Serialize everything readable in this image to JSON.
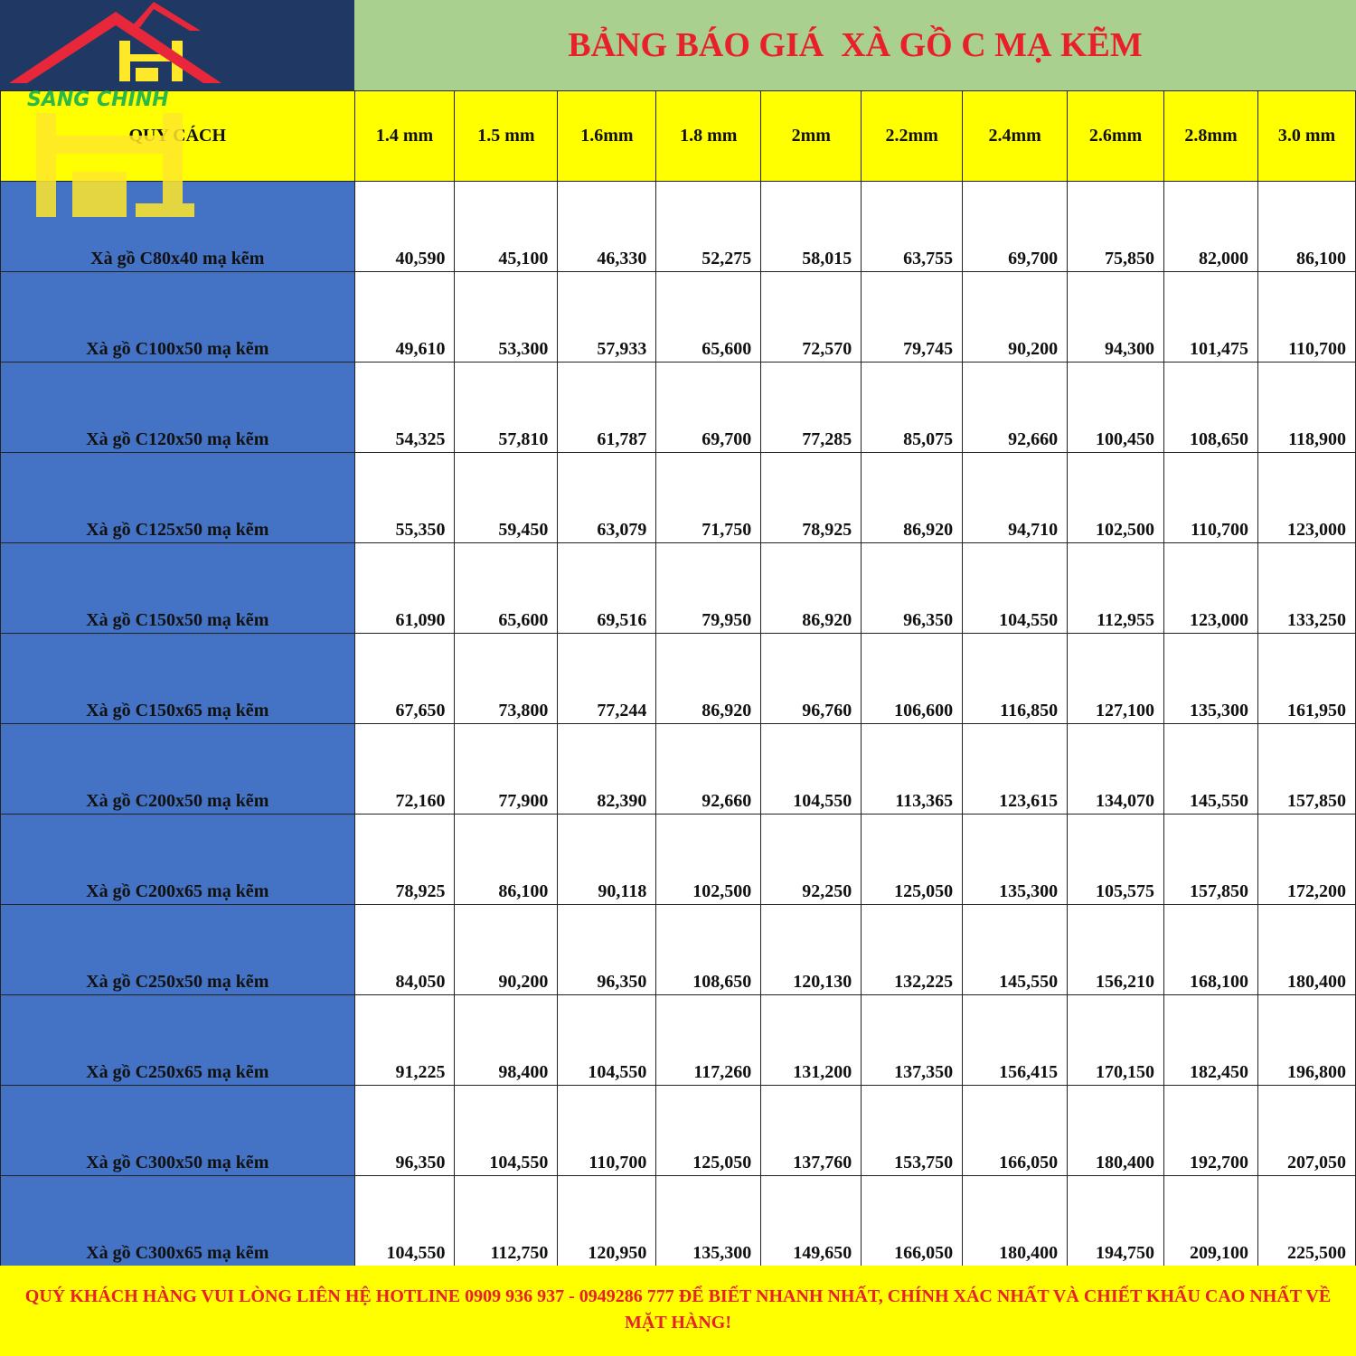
{
  "logo": {
    "text": "SANG CHINH",
    "monogram": "HJ"
  },
  "title": "BẢNG BÁO GIÁ  XÀ GỒ C MẠ KẼM",
  "header": {
    "spec": "QUY CÁCH",
    "thickness": [
      "1.4 mm",
      "1.5 mm",
      "1.6mm",
      "1.8 mm",
      "2mm",
      "2.2mm",
      "2.4mm",
      "2.6mm",
      "2.8mm",
      "3.0 mm"
    ]
  },
  "rows": [
    {
      "spec": "Xà gồ C80x40 mạ kẽm",
      "prices": [
        "40,590",
        "45,100",
        "46,330",
        "52,275",
        "58,015",
        "63,755",
        "69,700",
        "75,850",
        "82,000",
        "86,100"
      ]
    },
    {
      "spec": "Xà gồ C100x50 mạ kẽm",
      "prices": [
        "49,610",
        "53,300",
        "57,933",
        "65,600",
        "72,570",
        "79,745",
        "90,200",
        "94,300",
        "101,475",
        "110,700"
      ]
    },
    {
      "spec": "Xà gồ C120x50 mạ kẽm",
      "prices": [
        "54,325",
        "57,810",
        "61,787",
        "69,700",
        "77,285",
        "85,075",
        "92,660",
        "100,450",
        "108,650",
        "118,900"
      ]
    },
    {
      "spec": "Xà gồ C125x50 mạ kẽm",
      "prices": [
        "55,350",
        "59,450",
        "63,079",
        "71,750",
        "78,925",
        "86,920",
        "94,710",
        "102,500",
        "110,700",
        "123,000"
      ]
    },
    {
      "spec": "Xà gồ C150x50 mạ kẽm",
      "prices": [
        "61,090",
        "65,600",
        "69,516",
        "79,950",
        "86,920",
        "96,350",
        "104,550",
        "112,955",
        "123,000",
        "133,250"
      ]
    },
    {
      "spec": "Xà gồ C150x65 mạ kẽm",
      "prices": [
        "67,650",
        "73,800",
        "77,244",
        "86,920",
        "96,760",
        "106,600",
        "116,850",
        "127,100",
        "135,300",
        "161,950"
      ]
    },
    {
      "spec": "Xà gồ C200x50 mạ kẽm",
      "prices": [
        "72,160",
        "77,900",
        "82,390",
        "92,660",
        "104,550",
        "113,365",
        "123,615",
        "134,070",
        "145,550",
        "157,850"
      ]
    },
    {
      "spec": "Xà gồ C200x65 mạ kẽm",
      "prices": [
        "78,925",
        "86,100",
        "90,118",
        "102,500",
        "92,250",
        "125,050",
        "135,300",
        "105,575",
        "157,850",
        "172,200"
      ]
    },
    {
      "spec": "Xà gồ C250x50 mạ kẽm",
      "prices": [
        "84,050",
        "90,200",
        "96,350",
        "108,650",
        "120,130",
        "132,225",
        "145,550",
        "156,210",
        "168,100",
        "180,400"
      ]
    },
    {
      "spec": "Xà gồ C250x65 mạ kẽm",
      "prices": [
        "91,225",
        "98,400",
        "104,550",
        "117,260",
        "131,200",
        "137,350",
        "156,415",
        "170,150",
        "182,450",
        "196,800"
      ]
    },
    {
      "spec": "Xà gồ C300x50 mạ kẽm",
      "prices": [
        "96,350",
        "104,550",
        "110,700",
        "125,050",
        "137,760",
        "153,750",
        "166,050",
        "180,400",
        "192,700",
        "207,050"
      ]
    },
    {
      "spec": "Xà gồ C300x65 mạ kẽm",
      "prices": [
        "104,550",
        "112,750",
        "120,950",
        "135,300",
        "149,650",
        "166,050",
        "180,400",
        "194,750",
        "209,100",
        "225,500"
      ]
    }
  ],
  "footer": "QUÝ KHÁCH HÀNG VUI LÒNG LIÊN HỆ HOTLINE 0909 936 937 - 0949286 777 ĐỂ BIẾT NHANH NHẤT, CHÍNH XÁC NHẤT VÀ CHIẾT KHẤU CAO NHẤT VỀ MẶT HÀNG!",
  "colors": {
    "title_bg": "#a9d08e",
    "title_text": "#e8202a",
    "header_bg": "#ffff00",
    "spec_bg": "#4472c4",
    "logo_bg": "#1f3864"
  }
}
